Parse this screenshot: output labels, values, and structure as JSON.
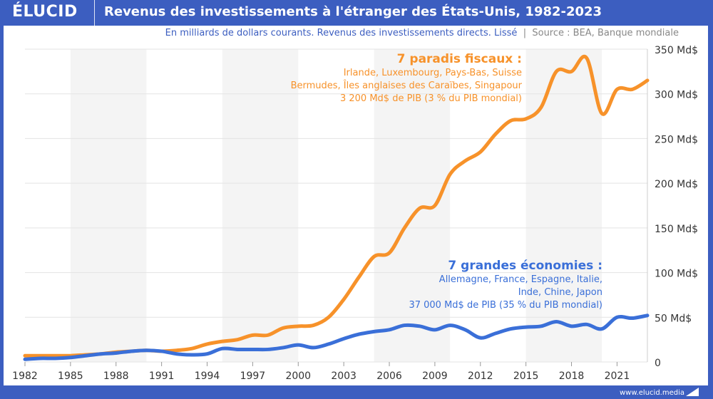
{
  "header": {
    "logo": "ÉLUCID",
    "title": "Revenus des investissements à l'étranger des États-Unis, 1982-2023"
  },
  "subtitle": {
    "text": "En milliards de dollars courants. Revenus des investissements directs. Lissé",
    "source": "Source : BEA, Banque mondiale"
  },
  "footer": {
    "url": "www.elucid.media"
  },
  "annotations": {
    "tax_havens": {
      "heading": "7 paradis fiscaux :",
      "line1": "Irlande, Luxembourg, Pays-Bas, Suisse",
      "line2": "Bermudes, Îles anglaises des Caraïbes, Singapour",
      "line3": "3 200 Md$ de PIB (3 % du PIB mondial)"
    },
    "big_economies": {
      "heading": "7 grandes économies :",
      "line1": "Allemagne, France, Espagne, Italie,",
      "line2": "Inde, Chine, Japon",
      "line3": "37 000 Md$ de PIB (35 % du PIB mondial)"
    }
  },
  "chart_data": {
    "type": "line",
    "title": "Revenus des investissements à l'étranger des États-Unis, 1982-2023",
    "xlim": [
      1982,
      2023
    ],
    "ylim": [
      0,
      350
    ],
    "x_ticks": [
      1982,
      1985,
      1988,
      1991,
      1994,
      1997,
      2000,
      2003,
      2006,
      2009,
      2012,
      2015,
      2018,
      2021
    ],
    "y_ticks": [
      {
        "value": 0,
        "label": "0"
      },
      {
        "value": 50,
        "label": "50 Md$"
      },
      {
        "value": 100,
        "label": "100 Md$"
      },
      {
        "value": 150,
        "label": "150 Md$"
      },
      {
        "value": 200,
        "label": "200 Md$"
      },
      {
        "value": 250,
        "label": "250 Md$"
      },
      {
        "value": 300,
        "label": "300 Md$"
      },
      {
        "value": 350,
        "label": "350 Md$"
      }
    ],
    "grid": true,
    "shaded_periods": [
      [
        1985,
        1990
      ],
      [
        1995,
        2000
      ],
      [
        2005,
        2010
      ],
      [
        2015,
        2020
      ]
    ],
    "series": [
      {
        "name": "7 paradis fiscaux",
        "color": "#f7922a",
        "x": [
          1982,
          1983,
          1984,
          1985,
          1986,
          1987,
          1988,
          1989,
          1990,
          1991,
          1992,
          1993,
          1994,
          1995,
          1996,
          1997,
          1998,
          1999,
          2000,
          2001,
          2002,
          2003,
          2004,
          2005,
          2006,
          2007,
          2008,
          2009,
          2010,
          2011,
          2012,
          2013,
          2014,
          2015,
          2016,
          2017,
          2018,
          2019,
          2020,
          2021,
          2022,
          2023
        ],
        "values": [
          7,
          7,
          7,
          7,
          8,
          9,
          11,
          12,
          13,
          12,
          13,
          15,
          20,
          23,
          25,
          30,
          30,
          38,
          40,
          41,
          50,
          70,
          95,
          118,
          122,
          150,
          172,
          175,
          210,
          225,
          235,
          255,
          270,
          272,
          285,
          325,
          325,
          340,
          278,
          305,
          305,
          315
        ]
      },
      {
        "name": "7 grandes économies",
        "color": "#3a6fd8",
        "x": [
          1982,
          1983,
          1984,
          1985,
          1986,
          1987,
          1988,
          1989,
          1990,
          1991,
          1992,
          1993,
          1994,
          1995,
          1996,
          1997,
          1998,
          1999,
          2000,
          2001,
          2002,
          2003,
          2004,
          2005,
          2006,
          2007,
          2008,
          2009,
          2010,
          2011,
          2012,
          2013,
          2014,
          2015,
          2016,
          2017,
          2018,
          2019,
          2020,
          2021,
          2022,
          2023
        ],
        "values": [
          3,
          4,
          4,
          5,
          7,
          9,
          10,
          12,
          13,
          12,
          9,
          8,
          9,
          15,
          14,
          14,
          14,
          16,
          19,
          16,
          20,
          26,
          31,
          34,
          36,
          41,
          40,
          36,
          41,
          36,
          27,
          32,
          37,
          39,
          40,
          45,
          40,
          42,
          37,
          50,
          49,
          52
        ]
      }
    ]
  }
}
